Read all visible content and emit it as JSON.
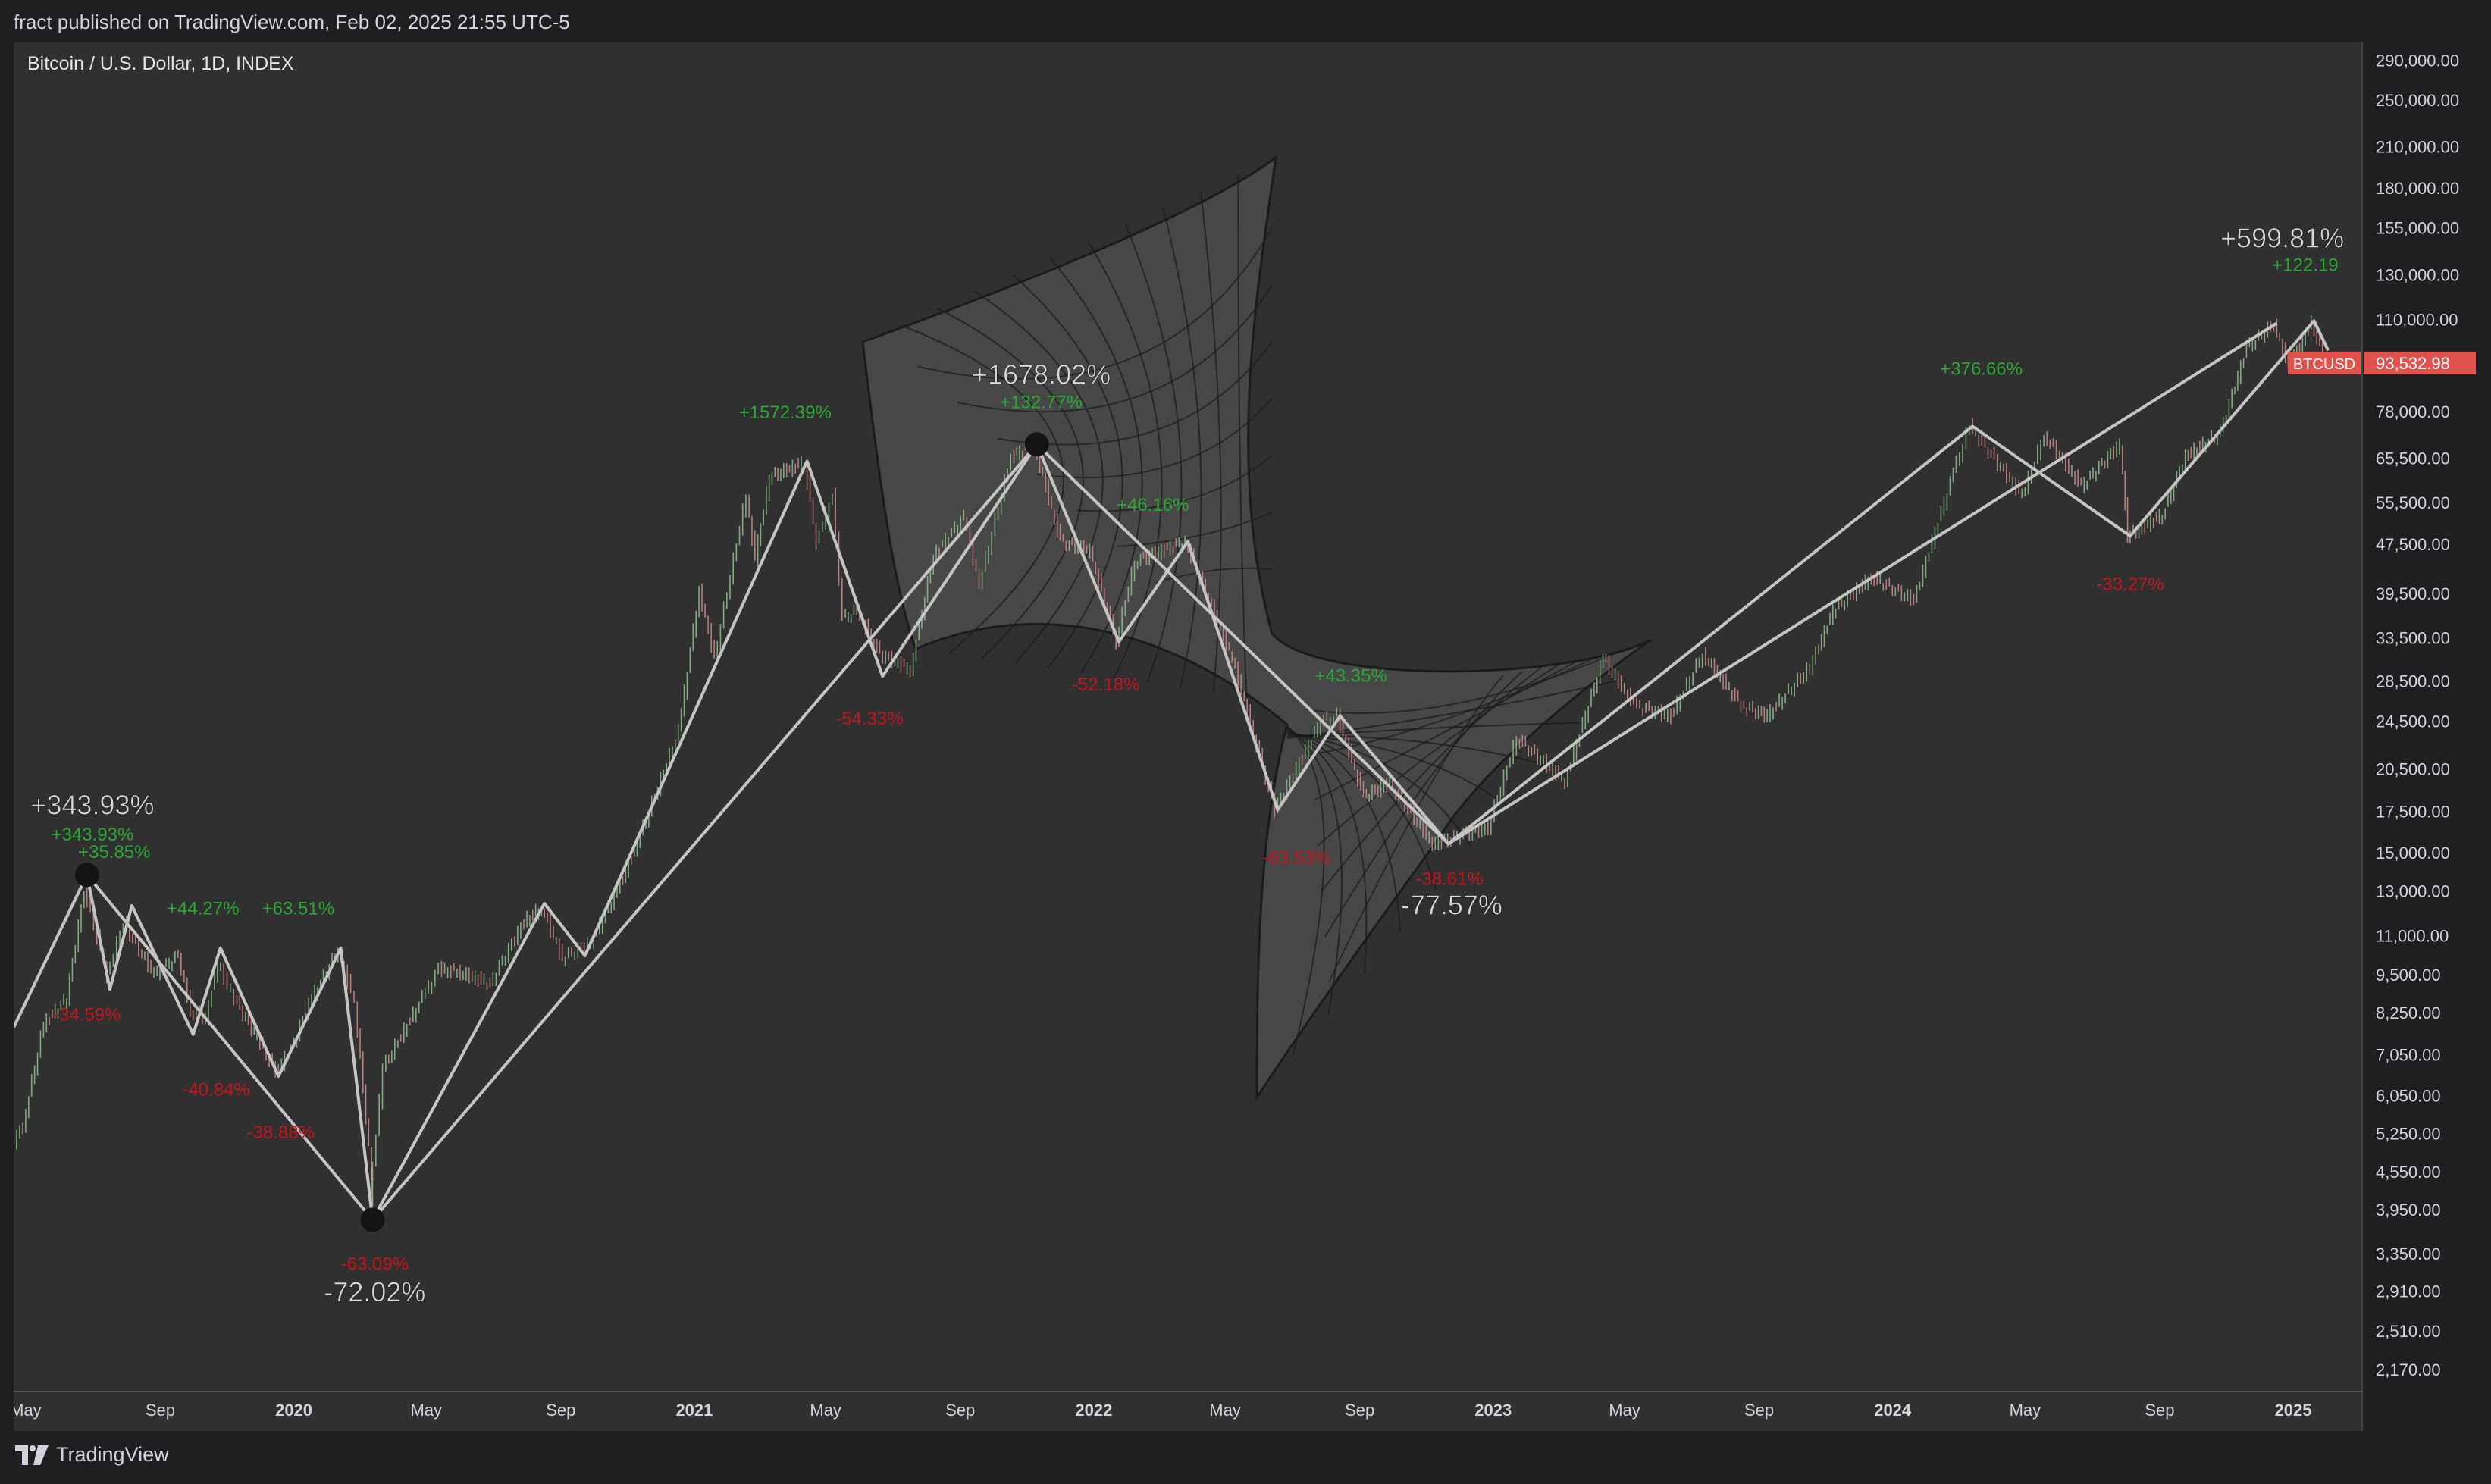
{
  "header": {
    "published": "fract published on TradingView.com, Feb 02, 2025 21:55 UTC-5"
  },
  "footer": {
    "brand": "TradingView"
  },
  "chart_data": {
    "type": "line",
    "title": "Bitcoin / U.S. Dollar, 1D, INDEX",
    "y_scale": "log",
    "ylim": [
      2000,
      310000
    ],
    "x_range": [
      "2019-04-20",
      "2025-03-05"
    ],
    "y_ticks": [
      290000,
      250000,
      210000,
      180000,
      155000,
      130000,
      110000,
      78000,
      65500,
      55500,
      47500,
      39500,
      33500,
      28500,
      24500,
      20500,
      17500,
      15000,
      13000,
      11000,
      9500,
      8250,
      7050,
      6050,
      5250,
      4550,
      3950,
      3350,
      2910,
      2510,
      2170
    ],
    "y_tick_labels": [
      "290,000.00",
      "250,000.00",
      "210,000.00",
      "180,000.00",
      "155,000.00",
      "130,000.00",
      "110,000.00",
      "78,000.00",
      "65,500.00",
      "55,500.00",
      "47,500.00",
      "39,500.00",
      "33,500.00",
      "28,500.00",
      "24,500.00",
      "20,500.00",
      "17,500.00",
      "15,000.00",
      "13,000.00",
      "11,000.00",
      "9,500.00",
      "8,250.00",
      "7,050.00",
      "6,050.00",
      "5,250.00",
      "4,550.00",
      "3,950.00",
      "3,350.00",
      "2,910.00",
      "2,510.00",
      "2,170.00"
    ],
    "x_ticks": [
      {
        "date": "2019-05-01",
        "label": "May",
        "bold": false
      },
      {
        "date": "2019-09-01",
        "label": "Sep",
        "bold": false
      },
      {
        "date": "2020-01-01",
        "label": "2020",
        "bold": true
      },
      {
        "date": "2020-05-01",
        "label": "May",
        "bold": false
      },
      {
        "date": "2020-09-01",
        "label": "Sep",
        "bold": false
      },
      {
        "date": "2021-01-01",
        "label": "2021",
        "bold": true
      },
      {
        "date": "2021-05-01",
        "label": "May",
        "bold": false
      },
      {
        "date": "2021-09-01",
        "label": "Sep",
        "bold": false
      },
      {
        "date": "2022-01-01",
        "label": "2022",
        "bold": true
      },
      {
        "date": "2022-05-01",
        "label": "May",
        "bold": false
      },
      {
        "date": "2022-09-01",
        "label": "Sep",
        "bold": false
      },
      {
        "date": "2023-01-01",
        "label": "2023",
        "bold": true
      },
      {
        "date": "2023-05-01",
        "label": "May",
        "bold": false
      },
      {
        "date": "2023-09-01",
        "label": "Sep",
        "bold": false
      },
      {
        "date": "2024-01-01",
        "label": "2024",
        "bold": true
      },
      {
        "date": "2024-05-01",
        "label": "May",
        "bold": false
      },
      {
        "date": "2024-09-01",
        "label": "Sep",
        "bold": false
      },
      {
        "date": "2025-01-01",
        "label": "2025",
        "bold": true
      }
    ],
    "price_path": [
      [
        "2019-04-20",
        5000
      ],
      [
        "2019-05-01",
        5400
      ],
      [
        "2019-05-20",
        7900
      ],
      [
        "2019-06-10",
        8700
      ],
      [
        "2019-06-26",
        13000
      ],
      [
        "2019-07-05",
        11500
      ],
      [
        "2019-07-17",
        9500
      ],
      [
        "2019-08-01",
        11500
      ],
      [
        "2019-08-29",
        9500
      ],
      [
        "2019-09-20",
        10200
      ],
      [
        "2019-10-01",
        8300
      ],
      [
        "2019-10-15",
        8100
      ],
      [
        "2019-10-26",
        9900
      ],
      [
        "2019-11-10",
        8700
      ],
      [
        "2019-12-01",
        7500
      ],
      [
        "2019-12-18",
        6600
      ],
      [
        "2020-01-01",
        7200
      ],
      [
        "2020-01-20",
        8700
      ],
      [
        "2020-02-13",
        10400
      ],
      [
        "2020-02-28",
        8600
      ],
      [
        "2020-03-12",
        5000
      ],
      [
        "2020-03-13",
        4100
      ],
      [
        "2020-03-25",
        6700
      ],
      [
        "2020-04-30",
        8700
      ],
      [
        "2020-05-15",
        9700
      ],
      [
        "2020-06-01",
        9600
      ],
      [
        "2020-07-01",
        9200
      ],
      [
        "2020-08-01",
        11600
      ],
      [
        "2020-08-17",
        12200
      ],
      [
        "2020-09-05",
        10100
      ],
      [
        "2020-10-01",
        10700
      ],
      [
        "2020-10-25",
        13000
      ],
      [
        "2020-11-15",
        16000
      ],
      [
        "2020-12-20",
        23500
      ],
      [
        "2021-01-08",
        40000
      ],
      [
        "2021-01-22",
        31000
      ],
      [
        "2021-02-20",
        57000
      ],
      [
        "2021-02-28",
        45000
      ],
      [
        "2021-03-13",
        61000
      ],
      [
        "2021-04-14",
        64500
      ],
      [
        "2021-04-25",
        48000
      ],
      [
        "2021-05-10",
        57000
      ],
      [
        "2021-05-19",
        36000
      ],
      [
        "2021-06-01",
        37000
      ],
      [
        "2021-06-22",
        31500
      ],
      [
        "2021-07-20",
        29800
      ],
      [
        "2021-08-10",
        45500
      ],
      [
        "2021-09-07",
        52600
      ],
      [
        "2021-09-21",
        40700
      ],
      [
        "2021-10-20",
        66000
      ],
      [
        "2021-11-10",
        69000
      ],
      [
        "2021-12-04",
        48000
      ],
      [
        "2021-12-31",
        46300
      ],
      [
        "2022-01-24",
        33000
      ],
      [
        "2022-02-10",
        44500
      ],
      [
        "2022-03-28",
        48000
      ],
      [
        "2022-05-10",
        31000
      ],
      [
        "2022-06-18",
        17600
      ],
      [
        "2022-07-30",
        24500
      ],
      [
        "2022-08-14",
        25000
      ],
      [
        "2022-09-07",
        18500
      ],
      [
        "2022-10-01",
        19400
      ],
      [
        "2022-11-09",
        15500
      ],
      [
        "2022-12-30",
        16500
      ],
      [
        "2023-01-25",
        23000
      ],
      [
        "2023-03-10",
        19600
      ],
      [
        "2023-04-14",
        31000
      ],
      [
        "2023-05-12",
        26000
      ],
      [
        "2023-06-15",
        25000
      ],
      [
        "2023-07-14",
        31500
      ],
      [
        "2023-08-18",
        26000
      ],
      [
        "2023-09-11",
        25000
      ],
      [
        "2023-10-20",
        30000
      ],
      [
        "2023-11-10",
        37000
      ],
      [
        "2023-12-15",
        42000
      ],
      [
        "2024-01-23",
        38500
      ],
      [
        "2024-02-28",
        62000
      ],
      [
        "2024-03-14",
        73700
      ],
      [
        "2024-05-01",
        57000
      ],
      [
        "2024-05-21",
        71500
      ],
      [
        "2024-06-24",
        59000
      ],
      [
        "2024-07-29",
        69000
      ],
      [
        "2024-08-05",
        49000
      ],
      [
        "2024-09-06",
        53000
      ],
      [
        "2024-09-27",
        66000
      ],
      [
        "2024-10-29",
        72000
      ],
      [
        "2024-11-22",
        99000
      ],
      [
        "2024-12-17",
        108000
      ],
      [
        "2024-12-30",
        92000
      ],
      [
        "2025-01-20",
        109000
      ],
      [
        "2025-02-02",
        93532.98
      ]
    ],
    "zigzag_fine": [
      [
        "2019-04-20",
        7800
      ],
      [
        "2019-06-26",
        13800
      ],
      [
        "2019-07-17",
        9000
      ],
      [
        "2019-08-06",
        12300
      ],
      [
        "2019-10-01",
        7600
      ],
      [
        "2019-10-26",
        10500
      ],
      [
        "2019-12-18",
        6500
      ],
      [
        "2020-02-13",
        10500
      ],
      [
        "2020-03-13",
        3800
      ],
      [
        "2020-08-17",
        12400
      ],
      [
        "2020-09-23",
        10200
      ],
      [
        "2021-04-14",
        64800
      ],
      [
        "2021-06-22",
        29000
      ],
      [
        "2021-11-10",
        69000
      ],
      [
        "2022-01-24",
        33000
      ],
      [
        "2022-03-28",
        48000
      ],
      [
        "2022-06-18",
        17600
      ],
      [
        "2022-08-14",
        25000
      ],
      [
        "2022-11-21",
        15500
      ],
      [
        "2024-03-14",
        73800
      ],
      [
        "2024-08-05",
        49000
      ],
      [
        "2025-01-20",
        109500
      ],
      [
        "2025-02-02",
        98000
      ]
    ],
    "zigzag_coarse": [
      [
        "2019-06-26",
        13800
      ],
      [
        "2020-03-13",
        3800
      ],
      [
        "2021-11-10",
        69000
      ],
      [
        "2022-11-21",
        15500
      ],
      [
        "2024-12-17",
        108500
      ]
    ],
    "pivot_markers": [
      [
        "2019-06-26",
        13800
      ],
      [
        "2020-03-13",
        3800
      ],
      [
        "2021-11-10",
        69000
      ]
    ],
    "annotations": [
      {
        "date": "2019-07-01",
        "price": 17300,
        "text": "+343.93%",
        "kind": "up",
        "size": "large"
      },
      {
        "date": "2019-07-01",
        "price": 15700,
        "text": "+343.93%",
        "kind": "up",
        "size": "small"
      },
      {
        "date": "2019-07-21",
        "price": 14700,
        "text": "+35.85%",
        "kind": "up",
        "size": "small"
      },
      {
        "date": "2019-06-26",
        "price": 8000,
        "text": "-34.59%",
        "kind": "down",
        "size": "small"
      },
      {
        "date": "2019-10-10",
        "price": 11900,
        "text": "+44.27%",
        "kind": "up",
        "size": "small"
      },
      {
        "date": "2020-01-05",
        "price": 11900,
        "text": "+63.51%",
        "kind": "up",
        "size": "small"
      },
      {
        "date": "2019-10-22",
        "price": 6050,
        "text": "-40.84%",
        "kind": "down",
        "size": "small"
      },
      {
        "date": "2019-12-20",
        "price": 5150,
        "text": "-38.88%",
        "kind": "down",
        "size": "small"
      },
      {
        "date": "2020-03-15",
        "price": 3150,
        "text": "-63.09%",
        "kind": "down",
        "size": "small"
      },
      {
        "date": "2020-03-15",
        "price": 2800,
        "text": "-72.02%",
        "kind": "down",
        "size": "large"
      },
      {
        "date": "2021-03-25",
        "price": 76000,
        "text": "+1572.39%",
        "kind": "up",
        "size": "small"
      },
      {
        "date": "2021-11-14",
        "price": 86500,
        "text": "+1678.02%",
        "kind": "up",
        "size": "large"
      },
      {
        "date": "2021-11-14",
        "price": 79000,
        "text": "+132.77%",
        "kind": "up",
        "size": "small"
      },
      {
        "date": "2021-06-10",
        "price": 24200,
        "text": "-54.33%",
        "kind": "down",
        "size": "small"
      },
      {
        "date": "2022-02-24",
        "price": 53800,
        "text": "+46.16%",
        "kind": "up",
        "size": "small"
      },
      {
        "date": "2022-01-12",
        "price": 27500,
        "text": "-52.18%",
        "kind": "down",
        "size": "small"
      },
      {
        "date": "2022-08-24",
        "price": 28400,
        "text": "+43.35%",
        "kind": "up",
        "size": "small"
      },
      {
        "date": "2022-07-05",
        "price": 14400,
        "text": "-63.53%",
        "kind": "down",
        "size": "small"
      },
      {
        "date": "2022-11-22",
        "price": 13300,
        "text": "-38.61%",
        "kind": "down",
        "size": "small"
      },
      {
        "date": "2022-11-24",
        "price": 11900,
        "text": "-77.57%",
        "kind": "down",
        "size": "large"
      },
      {
        "date": "2024-03-22",
        "price": 89500,
        "text": "+376.66%",
        "kind": "up",
        "size": "small"
      },
      {
        "date": "2024-08-05",
        "price": 40000,
        "text": "-33.27%",
        "kind": "down",
        "size": "small"
      },
      {
        "date": "2024-12-22",
        "price": 144000,
        "text": "+599.81%",
        "kind": "up",
        "size": "large"
      },
      {
        "date": "2025-01-12",
        "price": 132000,
        "text": "+122.19",
        "kind": "up",
        "size": "small"
      }
    ],
    "last_price": {
      "symbol": "BTCUSD",
      "value": 93532.98,
      "label": "93,532.98"
    },
    "colors": {
      "up": "#2aa833",
      "down": "#c3151c",
      "big_label": "#d8d8d8",
      "line": "#c4c4c4",
      "price_tag": "#e0524c",
      "bg": "#303030"
    }
  }
}
